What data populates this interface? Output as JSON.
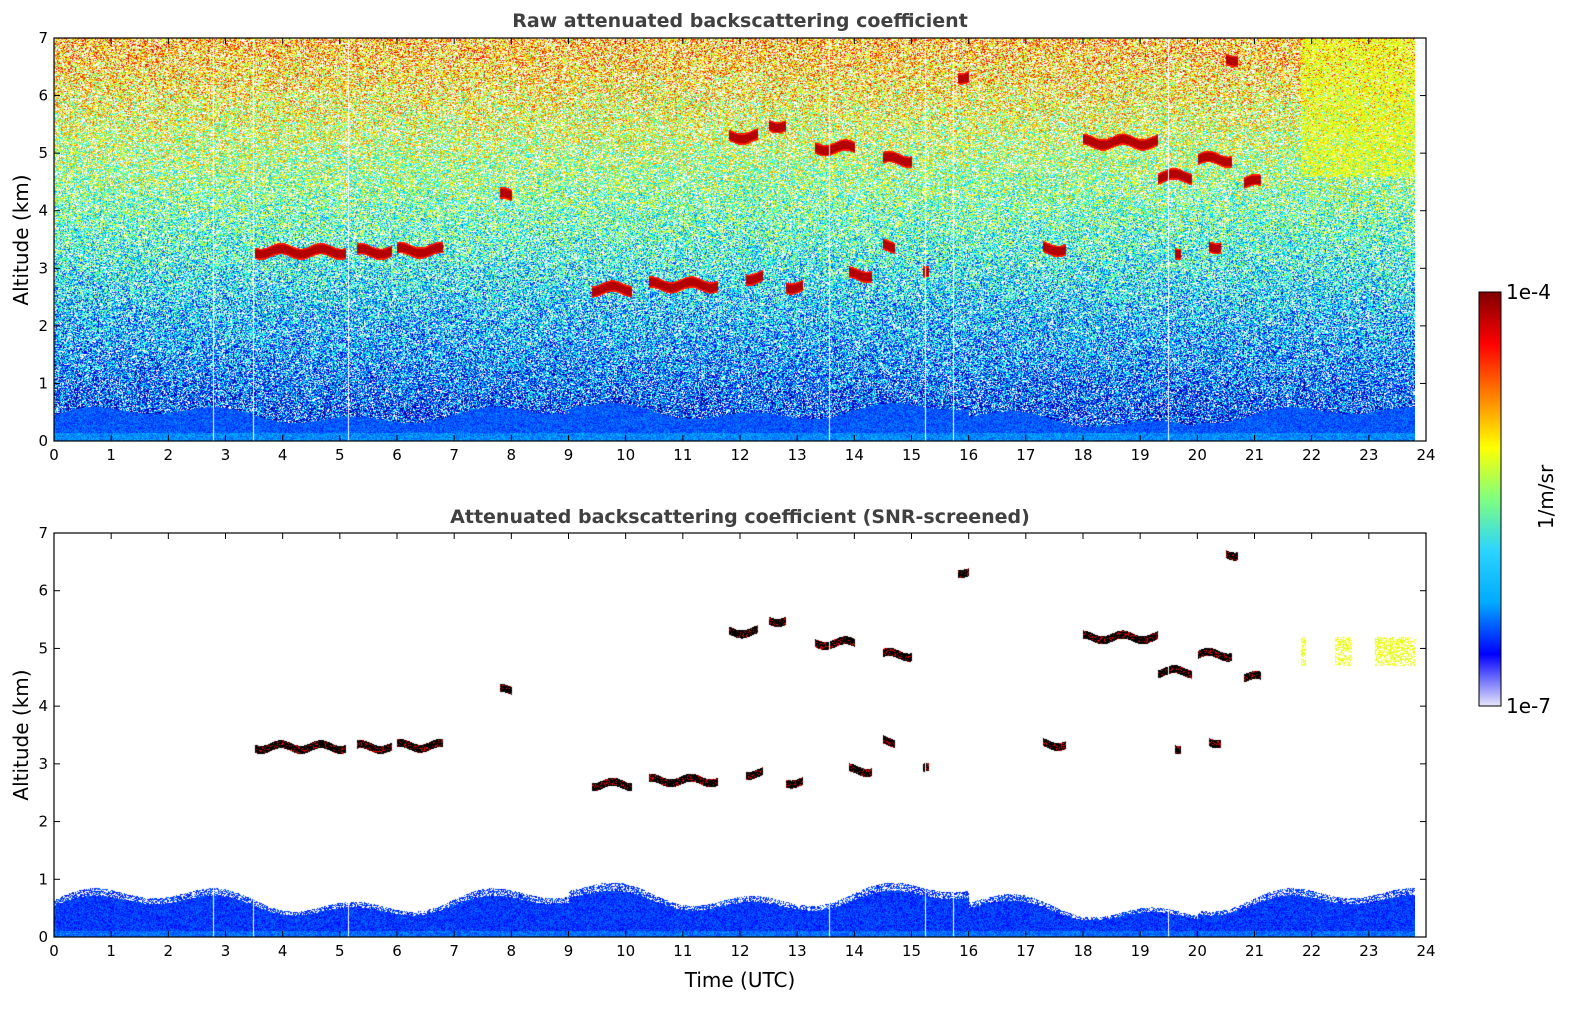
{
  "chart_data": [
    {
      "type": "heatmap",
      "title": "Raw attenuated backscattering coefficient",
      "xlabel": "",
      "ylabel": "Altitude (km)",
      "xlim": [
        0,
        24
      ],
      "ylim": [
        0,
        7
      ],
      "xticks": [
        "0",
        "1",
        "2",
        "3",
        "4",
        "5",
        "6",
        "7",
        "8",
        "9",
        "10",
        "11",
        "12",
        "13",
        "14",
        "15",
        "16",
        "17",
        "18",
        "19",
        "20",
        "21",
        "22",
        "23",
        "24"
      ],
      "yticks": [
        "0",
        "1",
        "2",
        "3",
        "4",
        "5",
        "6",
        "7"
      ],
      "data_end_time": 23.8,
      "noise": "high",
      "features": [
        {
          "kind": "cloud",
          "t0": 3.5,
          "t1": 5.1,
          "alt": 3.3
        },
        {
          "kind": "cloud",
          "t0": 5.3,
          "t1": 5.9,
          "alt": 3.3
        },
        {
          "kind": "cloud",
          "t0": 6.0,
          "t1": 6.8,
          "alt": 3.32
        },
        {
          "kind": "cloud",
          "t0": 9.4,
          "t1": 10.1,
          "alt": 2.65
        },
        {
          "kind": "cloud",
          "t0": 10.4,
          "t1": 11.6,
          "alt": 2.72
        },
        {
          "kind": "cloud",
          "t0": 12.1,
          "t1": 12.4,
          "alt": 2.85
        },
        {
          "kind": "cloud",
          "t0": 12.8,
          "t1": 13.1,
          "alt": 2.7
        },
        {
          "kind": "cloud",
          "t0": 13.9,
          "t1": 14.3,
          "alt": 2.9
        },
        {
          "kind": "cloud",
          "t0": 14.5,
          "t1": 14.7,
          "alt": 3.4
        },
        {
          "kind": "cloud",
          "t0": 15.2,
          "t1": 15.3,
          "alt": 2.9
        },
        {
          "kind": "cloud",
          "t0": 11.8,
          "t1": 12.3,
          "alt": 5.3
        },
        {
          "kind": "cloud",
          "t0": 12.5,
          "t1": 12.8,
          "alt": 5.5
        },
        {
          "kind": "cloud",
          "t0": 13.3,
          "t1": 14.0,
          "alt": 5.1
        },
        {
          "kind": "cloud",
          "t0": 14.5,
          "t1": 15.0,
          "alt": 4.9
        },
        {
          "kind": "cloud",
          "t0": 15.8,
          "t1": 16.0,
          "alt": 6.35
        },
        {
          "kind": "cloud",
          "t0": 17.3,
          "t1": 17.7,
          "alt": 3.35
        },
        {
          "kind": "cloud",
          "t0": 18.0,
          "t1": 19.3,
          "alt": 5.2
        },
        {
          "kind": "cloud",
          "t0": 19.3,
          "t1": 19.9,
          "alt": 4.6
        },
        {
          "kind": "cloud",
          "t0": 20.0,
          "t1": 20.6,
          "alt": 4.9
        },
        {
          "kind": "cloud",
          "t0": 20.2,
          "t1": 20.4,
          "alt": 3.4
        },
        {
          "kind": "cloud",
          "t0": 20.8,
          "t1": 21.1,
          "alt": 4.5
        },
        {
          "kind": "cloud",
          "t0": 20.5,
          "t1": 20.7,
          "alt": 6.65
        },
        {
          "kind": "cloud",
          "t0": 7.8,
          "t1": 8.0,
          "alt": 4.27
        },
        {
          "kind": "cloud",
          "t0": 19.6,
          "t1": 19.7,
          "alt": 3.3
        }
      ]
    },
    {
      "type": "heatmap",
      "title": "Attenuated backscattering coefficient (SNR-screened)",
      "xlabel": "Time (UTC)",
      "ylabel": "Altitude (km)",
      "xlim": [
        0,
        24
      ],
      "ylim": [
        0,
        7
      ],
      "xticks": [
        "0",
        "1",
        "2",
        "3",
        "4",
        "5",
        "6",
        "7",
        "8",
        "9",
        "10",
        "11",
        "12",
        "13",
        "14",
        "15",
        "16",
        "17",
        "18",
        "19",
        "20",
        "21",
        "22",
        "23",
        "24"
      ],
      "yticks": [
        "0",
        "1",
        "2",
        "3",
        "4",
        "5",
        "6",
        "7"
      ],
      "data_end_time": 23.8,
      "noise": "screened"
    }
  ],
  "colorbar": {
    "label": "1/m/sr",
    "max_label": "1e-4",
    "min_label": "1e-7",
    "colormap": "jet",
    "colors": [
      "#e6e6fa",
      "#0000ff",
      "#00aaff",
      "#2bd4ff",
      "#7fff7f",
      "#ffff00",
      "#ff8000",
      "#ff0000",
      "#800000"
    ]
  },
  "colors": {
    "title": "#404040",
    "cloud_core": "#7f0000",
    "cloud_edge": "#000000"
  }
}
